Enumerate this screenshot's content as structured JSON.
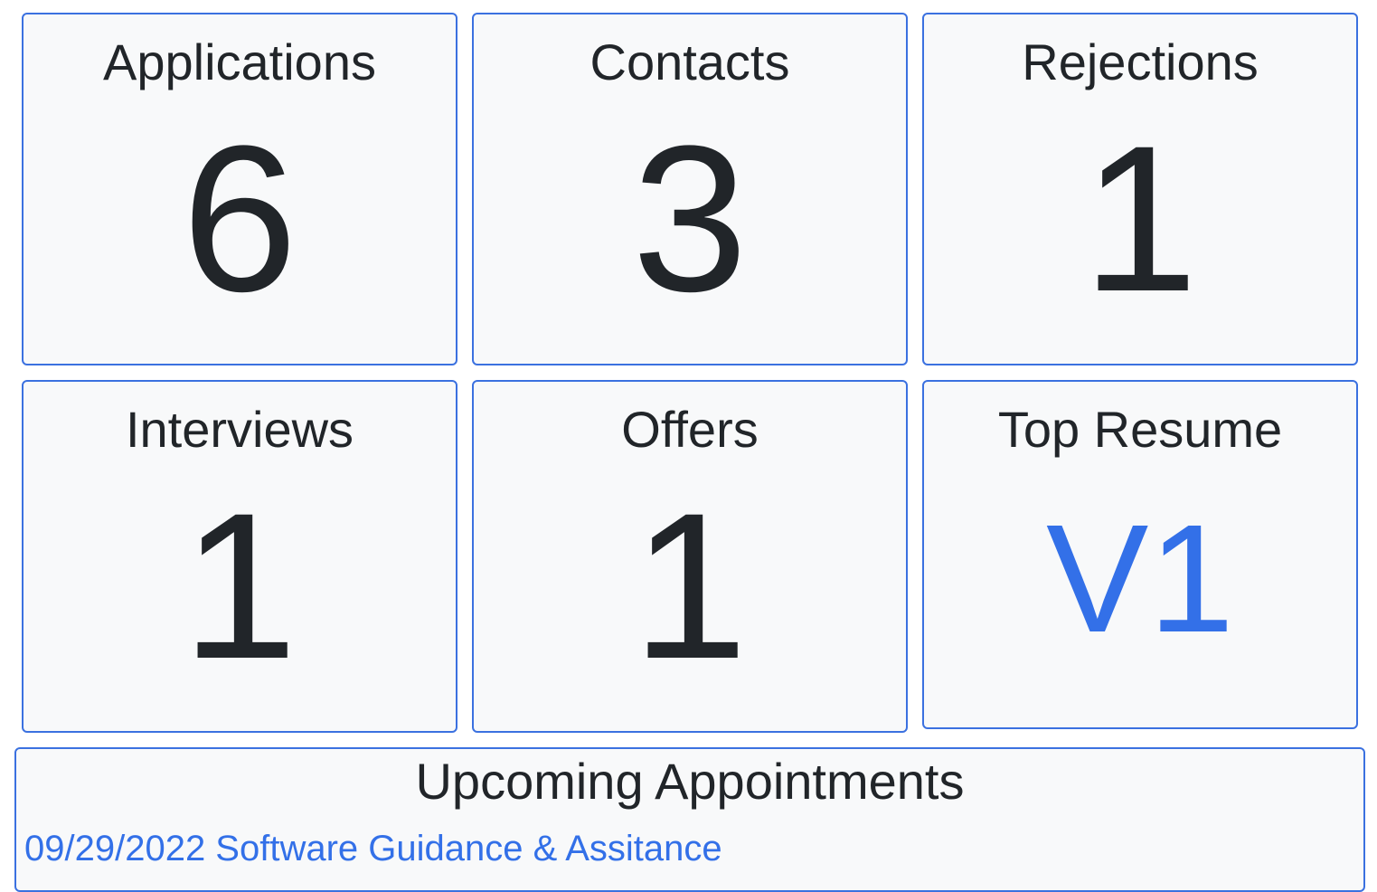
{
  "stats": [
    {
      "title": "Applications",
      "value": "6"
    },
    {
      "title": "Contacts",
      "value": "3"
    },
    {
      "title": "Rejections",
      "value": "1"
    },
    {
      "title": "Interviews",
      "value": "1"
    },
    {
      "title": "Offers",
      "value": "1"
    },
    {
      "title": "Top Resume",
      "value": "V1"
    }
  ],
  "appointments": {
    "title": "Upcoming Appointments",
    "items": [
      {
        "label": "09/29/2022 Software Guidance & Assitance"
      }
    ]
  },
  "colors": {
    "card_border": "#3b71e0",
    "card_background": "#f8f9fa",
    "text": "#212529",
    "link": "#3370e8"
  }
}
